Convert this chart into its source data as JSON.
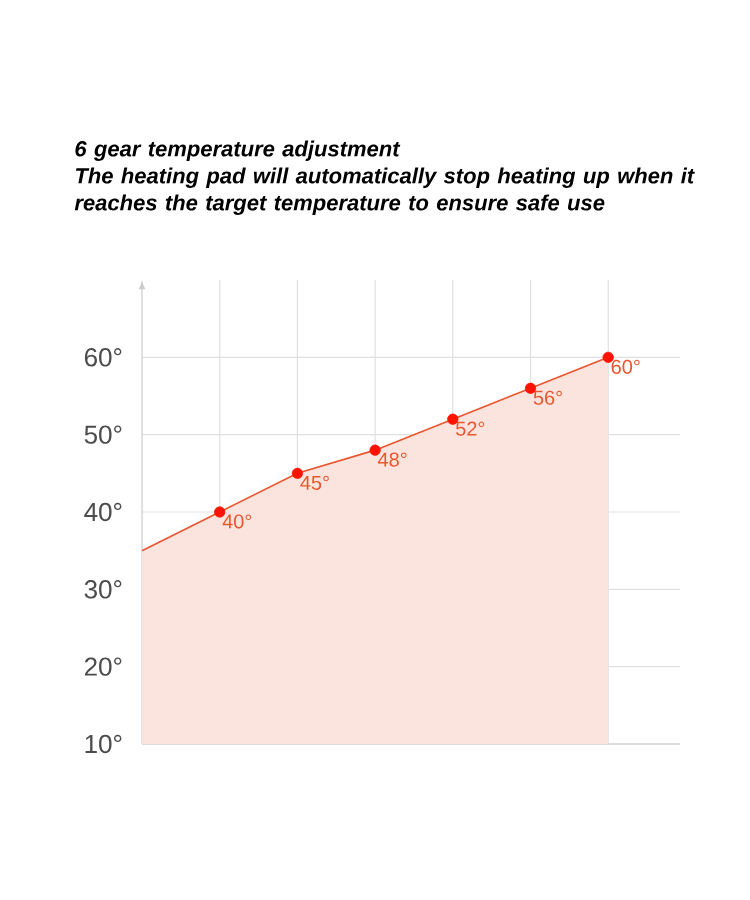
{
  "chart_data": {
    "type": "area",
    "title": "6 gear temperature adjustment",
    "subtitle": "The heating pad will automatically stop heating up when it reaches the target temperature to ensure safe use",
    "categories": [
      null,
      null,
      null,
      null,
      null,
      null,
      null
    ],
    "series": [
      {
        "color": "#e8562e",
        "values": [
          35,
          40,
          45,
          48,
          52,
          56,
          60
        ],
        "value_labels": [
          null,
          "40°",
          "45°",
          "48°",
          "52°",
          "56°",
          "60°"
        ]
      }
    ],
    "ylim": [
      10,
      70
    ],
    "yticks": [
      {
        "value": 10,
        "label": "10°"
      },
      {
        "value": 20,
        "label": "20°"
      },
      {
        "value": 30,
        "label": "30°"
      },
      {
        "value": 40,
        "label": "40°"
      },
      {
        "value": 50,
        "label": "50°"
      },
      {
        "value": 60,
        "label": "60°"
      }
    ],
    "grid": true,
    "tick_labels": "y",
    "marker": "circle"
  }
}
